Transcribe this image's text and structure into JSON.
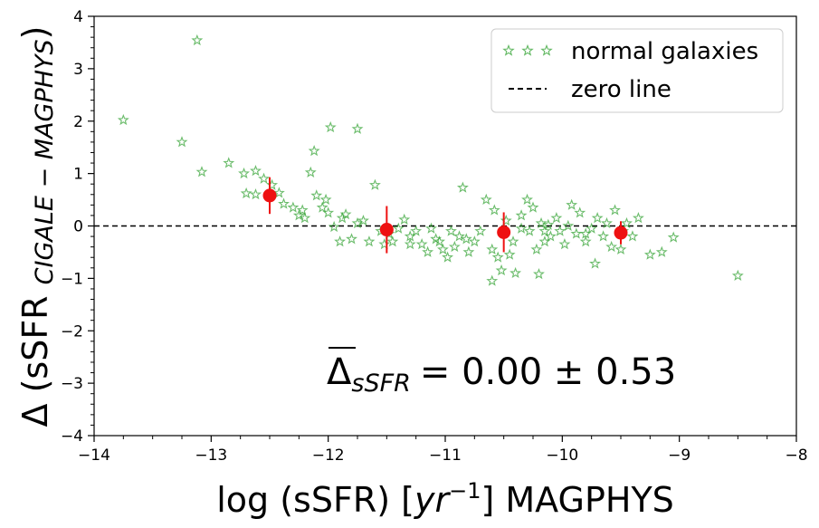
{
  "chart_data": {
    "type": "scatter",
    "title": "",
    "xlabel": "log (sSFR) [yr−1] MAGPHYS",
    "xlabel_parts": {
      "pre": "log (sSFR) [",
      "math": "yr",
      "exp": "−1",
      "post": "] MAGPHYS"
    },
    "ylabel": "Δ (sSFR CIGALE − MAGPHYS)",
    "ylabel_parts": {
      "pre": "Δ (sSFR ",
      "sub": "CIGALE − MAGPHYS",
      "post": ")"
    },
    "xlim": [
      -14,
      -8
    ],
    "ylim": [
      -4,
      4
    ],
    "xticks": [
      -14,
      -13,
      -12,
      -11,
      -10,
      -9,
      -8
    ],
    "yticks": [
      -4,
      -3,
      -2,
      -1,
      0,
      1,
      2,
      3,
      4
    ],
    "xtick_labels": [
      "−14",
      "−13",
      "−12",
      "−11",
      "−10",
      "−9",
      "−8"
    ],
    "ytick_labels": [
      "−4",
      "−3",
      "−2",
      "−1",
      "0",
      "1",
      "2",
      "3",
      "4"
    ],
    "legend": {
      "location": "upper right",
      "entries": [
        {
          "label": "normal galaxies",
          "marker": "star",
          "color": "#2ca02c"
        },
        {
          "label": "zero line",
          "style": "dashed",
          "color": "#000000"
        }
      ]
    },
    "annotation": {
      "text": "Δ̅_sSFR = 0.00 ± 0.53",
      "main": "Δ",
      "sub": "sSFR",
      "value": "= 0.00 ± 0.53"
    },
    "zero_line": {
      "y": 0,
      "color": "#000000"
    },
    "series": [
      {
        "name": "normal galaxies",
        "color": "#2ca02c",
        "points": [
          [
            -13.75,
            2.02
          ],
          [
            -13.12,
            3.54
          ],
          [
            -13.25,
            1.6
          ],
          [
            -13.08,
            1.03
          ],
          [
            -12.85,
            1.2
          ],
          [
            -12.72,
            1.0
          ],
          [
            -12.62,
            1.05
          ],
          [
            -12.7,
            0.62
          ],
          [
            -12.62,
            0.6
          ],
          [
            -12.55,
            0.9
          ],
          [
            -12.48,
            0.78
          ],
          [
            -12.42,
            0.63
          ],
          [
            -12.38,
            0.42
          ],
          [
            -12.3,
            0.35
          ],
          [
            -12.25,
            0.2
          ],
          [
            -12.22,
            0.3
          ],
          [
            -12.2,
            0.15
          ],
          [
            -12.15,
            1.02
          ],
          [
            -12.12,
            1.43
          ],
          [
            -12.1,
            0.58
          ],
          [
            -12.05,
            0.35
          ],
          [
            -12.02,
            0.5
          ],
          [
            -12.0,
            0.25
          ],
          [
            -11.98,
            1.88
          ],
          [
            -11.75,
            1.85
          ],
          [
            -11.95,
            -0.02
          ],
          [
            -11.88,
            0.15
          ],
          [
            -11.85,
            0.22
          ],
          [
            -11.8,
            -0.25
          ],
          [
            -11.75,
            0.05
          ],
          [
            -11.7,
            0.1
          ],
          [
            -11.65,
            -0.3
          ],
          [
            -11.6,
            0.78
          ],
          [
            -11.55,
            -0.1
          ],
          [
            -11.52,
            -0.35
          ],
          [
            -11.48,
            -0.15
          ],
          [
            -11.45,
            -0.3
          ],
          [
            -11.4,
            -0.05
          ],
          [
            -11.35,
            0.12
          ],
          [
            -11.3,
            -0.2
          ],
          [
            -11.25,
            -0.1
          ],
          [
            -11.2,
            -0.35
          ],
          [
            -11.15,
            -0.5
          ],
          [
            -11.12,
            -0.05
          ],
          [
            -11.08,
            -0.25
          ],
          [
            -11.05,
            -0.3
          ],
          [
            -11.02,
            -0.45
          ],
          [
            -10.98,
            -0.6
          ],
          [
            -10.95,
            -0.1
          ],
          [
            -10.92,
            -0.4
          ],
          [
            -10.88,
            -0.2
          ],
          [
            -10.85,
            0.73
          ],
          [
            -10.82,
            -0.25
          ],
          [
            -10.8,
            -0.5
          ],
          [
            -10.75,
            -0.3
          ],
          [
            -10.7,
            -0.1
          ],
          [
            -10.65,
            0.5
          ],
          [
            -10.6,
            -1.05
          ],
          [
            -10.58,
            0.3
          ],
          [
            -10.55,
            -0.6
          ],
          [
            -10.52,
            -0.85
          ],
          [
            -10.48,
            0.1
          ],
          [
            -10.45,
            -0.55
          ],
          [
            -10.42,
            -0.3
          ],
          [
            -10.4,
            -0.9
          ],
          [
            -10.35,
            0.2
          ],
          [
            -10.3,
            0.5
          ],
          [
            -10.28,
            -0.1
          ],
          [
            -10.25,
            0.35
          ],
          [
            -10.22,
            -0.45
          ],
          [
            -10.2,
            -0.92
          ],
          [
            -10.18,
            0.05
          ],
          [
            -10.15,
            -0.3
          ],
          [
            -10.12,
            0.02
          ],
          [
            -10.1,
            -0.2
          ],
          [
            -10.05,
            0.15
          ],
          [
            -10.02,
            -0.1
          ],
          [
            -9.98,
            -0.35
          ],
          [
            -9.95,
            0.0
          ],
          [
            -9.92,
            0.4
          ],
          [
            -9.88,
            -0.15
          ],
          [
            -9.85,
            0.25
          ],
          [
            -9.8,
            -0.3
          ],
          [
            -9.75,
            -0.05
          ],
          [
            -9.72,
            -0.72
          ],
          [
            -9.7,
            0.15
          ],
          [
            -9.65,
            -0.2
          ],
          [
            -9.62,
            0.05
          ],
          [
            -9.58,
            -0.4
          ],
          [
            -9.55,
            0.3
          ],
          [
            -9.5,
            -0.45
          ],
          [
            -9.48,
            -0.1
          ],
          [
            -9.45,
            0.05
          ],
          [
            -9.4,
            -0.2
          ],
          [
            -9.35,
            0.15
          ],
          [
            -9.25,
            -0.55
          ],
          [
            -9.15,
            -0.5
          ],
          [
            -9.05,
            -0.22
          ],
          [
            -8.5,
            -0.95
          ],
          [
            -11.9,
            -0.3
          ],
          [
            -11.3,
            -0.35
          ],
          [
            -10.6,
            -0.45
          ],
          [
            -10.15,
            -0.1
          ],
          [
            -9.8,
            -0.15
          ],
          [
            -10.35,
            -0.05
          ]
        ]
      }
    ],
    "binned_means": {
      "color": "#ee1111",
      "points": [
        {
          "x": -12.5,
          "y": 0.58,
          "err": 0.35
        },
        {
          "x": -11.5,
          "y": -0.07,
          "err": 0.45
        },
        {
          "x": -10.5,
          "y": -0.12,
          "err": 0.38
        },
        {
          "x": -9.5,
          "y": -0.13,
          "err": 0.22
        }
      ]
    }
  }
}
